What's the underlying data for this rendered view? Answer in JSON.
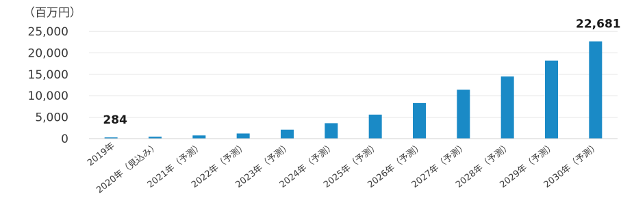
{
  "chart_data": {
    "type": "bar",
    "title": "",
    "unit_label": "（百万円）",
    "ylabel": "",
    "xlabel": "",
    "ylim": [
      0,
      25000
    ],
    "yticks": [
      "0",
      "5,000",
      "10,000",
      "15,000",
      "20,000",
      "25,000"
    ],
    "grid": true,
    "legend": "none",
    "bar_color": "#1a8ac6",
    "categories": [
      "2019年",
      "2020年（見込み）",
      "2021年（予測）",
      "2022年（予測）",
      "2023年（予測）",
      "2024年（予測）",
      "2025年（予測）",
      "2026年（予測）",
      "2027年（予測）",
      "2028年（予測）",
      "2029年（予測）",
      "2030年（予測）"
    ],
    "values": [
      284,
      450,
      750,
      1200,
      2100,
      3600,
      5600,
      8300,
      11400,
      14500,
      18200,
      22681
    ],
    "data_labels": [
      {
        "index": 0,
        "text": "284"
      },
      {
        "index": 11,
        "text": "22,681"
      }
    ]
  }
}
